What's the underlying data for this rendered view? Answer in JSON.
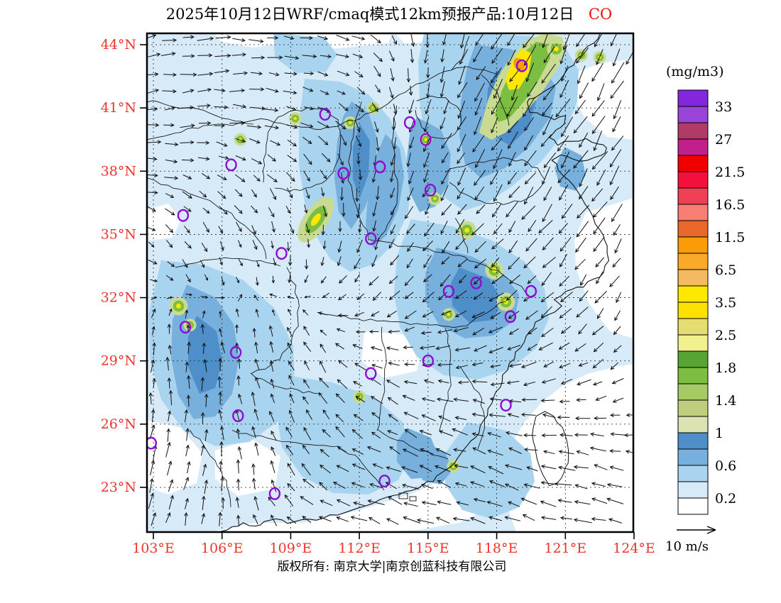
{
  "title": {
    "text": "2025年10月12日WRF/cmaq模式12km预报产品:10月12日",
    "pollutant": "CO"
  },
  "footer": {
    "copyright": "版权所有: 南京大学|南京创蓝科技有限公司"
  },
  "colors": {
    "axis_label_red": "#ee342c",
    "pollutant_red": "#f2100c",
    "station_purple": "#8e0bd3",
    "boundary_black": "#111111",
    "grid_black": "#222222"
  },
  "chart_data": {
    "type": "heatmap",
    "title": "2025年10月12日WRF/cmaq模式12km预报产品:10月12日 CO",
    "pollutant": "CO",
    "unit": "(mg/m3)",
    "wind_scale_label": "10 m/s",
    "x_axis": {
      "tick_labels": [
        "103°E",
        "106°E",
        "109°E",
        "112°E",
        "115°E",
        "118°E",
        "121°E",
        "124°E"
      ],
      "tick_lons": [
        103,
        106,
        109,
        112,
        115,
        118,
        121,
        124
      ]
    },
    "y_axis": {
      "tick_labels": [
        "44°N",
        "41°N",
        "38°N",
        "35°N",
        "32°N",
        "29°N",
        "26°N",
        "23°N"
      ],
      "tick_lats": [
        44,
        41,
        38,
        35,
        32,
        29,
        26,
        23
      ]
    },
    "lon_range_shown": [
      102.7,
      124.0
    ],
    "lat_range_shown": [
      20.9,
      44.5
    ],
    "colorbar": {
      "unit": "(mg/m3)",
      "tick_labels": [
        "33",
        "27",
        "21.5",
        "16.5",
        "11.5",
        "6.5",
        "3.5",
        "2.5",
        "1.8",
        "1.4",
        "1",
        "0.6",
        "0.2"
      ],
      "cell_colors_top_to_bottom": [
        "#8426dc",
        "#9a43d8",
        "#b13a66",
        "#c21f8c",
        "#f20000",
        "#f50f3c",
        "#f04056",
        "#f87d72",
        "#e9672a",
        "#fa9c07",
        "#f9aa28",
        "#f4ba62",
        "#ffe800",
        "#ffe100",
        "#e6dd70",
        "#f1ef8f",
        "#56a434",
        "#7cbe41",
        "#a6cb64",
        "#bfce7d",
        "#dde2b3",
        "#4e8fc9",
        "#77afdd",
        "#a9d4ef",
        "#d7eaf8",
        "#ffffff"
      ]
    },
    "shading_palette_on_map": {
      "pale_blue": "#d7eaf8",
      "light_blue": "#a9d4ef",
      "medium_blue": "#77afdd",
      "steel_blue": "#4e8fc9",
      "pale_green": "#c9db92",
      "green": "#7cbe41",
      "yellow": "#ffe800",
      "orange": "#fa9c07"
    },
    "stations_lonlat": [
      [
        119.1,
        43.0
      ],
      [
        110.5,
        40.7
      ],
      [
        114.2,
        40.3
      ],
      [
        114.9,
        39.5
      ],
      [
        106.4,
        38.3
      ],
      [
        111.3,
        37.9
      ],
      [
        112.9,
        38.2
      ],
      [
        115.1,
        37.1
      ],
      [
        104.3,
        35.9
      ],
      [
        108.6,
        34.1
      ],
      [
        112.5,
        34.8
      ],
      [
        104.4,
        30.6
      ],
      [
        106.6,
        29.4
      ],
      [
        112.5,
        28.4
      ],
      [
        115.9,
        32.3
      ],
      [
        117.1,
        32.7
      ],
      [
        119.5,
        32.3
      ],
      [
        118.6,
        31.1
      ],
      [
        115.0,
        29.0
      ],
      [
        102.9,
        25.1
      ],
      [
        106.7,
        26.4
      ],
      [
        108.3,
        22.7
      ],
      [
        113.1,
        23.3
      ],
      [
        118.4,
        26.9
      ]
    ],
    "hotspots_lonlat": [
      {
        "lon": 118.9,
        "lat": 42.3,
        "size": 5,
        "main": true
      },
      {
        "lon": 120.6,
        "lat": 43.8,
        "size": 2
      },
      {
        "lon": 121.7,
        "lat": 43.5,
        "size": 1
      },
      {
        "lon": 122.5,
        "lat": 43.4,
        "size": 1
      },
      {
        "lon": 109.2,
        "lat": 40.5,
        "size": 1
      },
      {
        "lon": 112.6,
        "lat": 41.0,
        "size": 1
      },
      {
        "lon": 111.6,
        "lat": 40.3,
        "size": 1
      },
      {
        "lon": 106.8,
        "lat": 39.5,
        "size": 1
      },
      {
        "lon": 114.9,
        "lat": 39.5,
        "size": 1
      },
      {
        "lon": 110.1,
        "lat": 35.7,
        "size": 3,
        "stretch": 2.2,
        "rot": -55
      },
      {
        "lon": 116.7,
        "lat": 35.2,
        "size": 2
      },
      {
        "lon": 115.3,
        "lat": 36.7,
        "size": 1
      },
      {
        "lon": 117.9,
        "lat": 33.3,
        "size": 2
      },
      {
        "lon": 118.4,
        "lat": 31.8,
        "size": 2
      },
      {
        "lon": 115.9,
        "lat": 31.2,
        "size": 1
      },
      {
        "lon": 104.1,
        "lat": 31.6,
        "size": 2
      },
      {
        "lon": 104.6,
        "lat": 30.7,
        "size": 1
      },
      {
        "lon": 112.0,
        "lat": 27.3,
        "size": 1
      },
      {
        "lon": 116.1,
        "lat": 24.0,
        "size": 1
      }
    ]
  }
}
